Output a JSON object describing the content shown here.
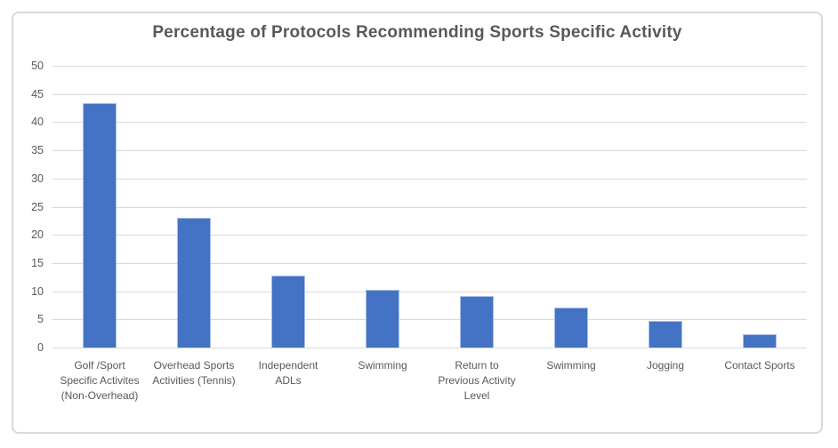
{
  "chart_data": {
    "type": "bar",
    "title": "Percentage of Protocols Recommending Sports Specific Activity",
    "categories": [
      "Golf /Sport Specific Activites (Non-Overhead)",
      "Overhead Sports Activities (Tennis)",
      "Independent ADLs",
      "Swimming",
      "Return to Previous Activity Level",
      "Swimming",
      "Jogging",
      "Contact Sports"
    ],
    "values": [
      43.3,
      23,
      12.7,
      10.3,
      9.2,
      7.1,
      4.8,
      2.4
    ],
    "xlabel": "",
    "ylabel": "",
    "ylim": [
      0,
      50
    ],
    "ytick_step": 5,
    "ytick_labels": [
      "0",
      "5",
      "10",
      "15",
      "20",
      "25",
      "30",
      "35",
      "40",
      "45",
      "50"
    ],
    "grid": true,
    "legend": false,
    "colors": {
      "bar_fill": "#4472C4",
      "bar_edge": "#A9C1E8",
      "gridline": "#D9D9D9",
      "frame_border": "#D9D9D9",
      "text": "#595959",
      "background": "#FFFFFF"
    }
  }
}
